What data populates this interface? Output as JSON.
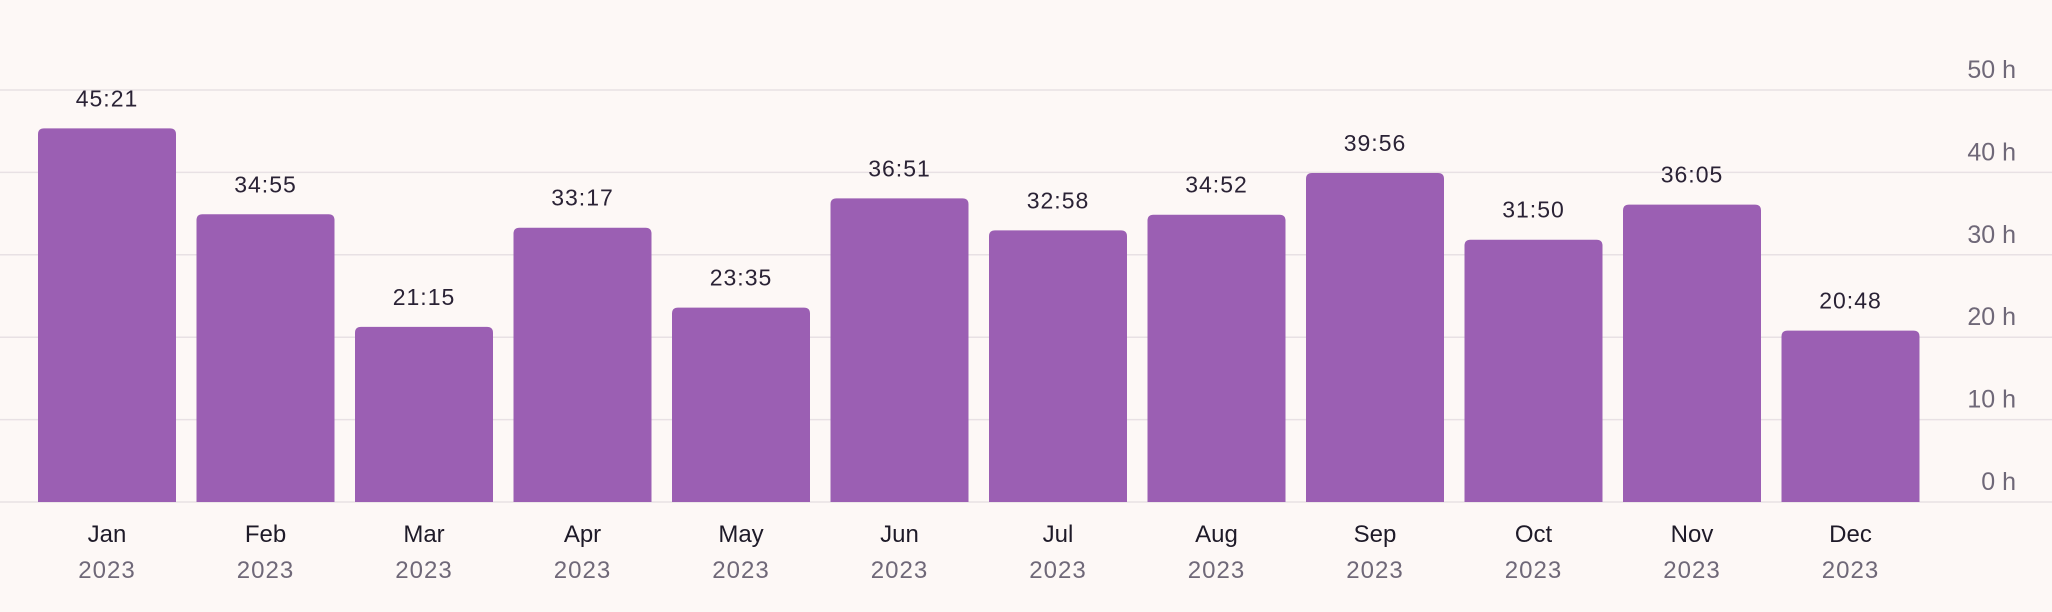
{
  "chart_data": {
    "type": "bar",
    "categories": [
      "Jan",
      "Feb",
      "Mar",
      "Apr",
      "May",
      "Jun",
      "Jul",
      "Aug",
      "Sep",
      "Oct",
      "Nov",
      "Dec"
    ],
    "category_sublabels": [
      "2023",
      "2023",
      "2023",
      "2023",
      "2023",
      "2023",
      "2023",
      "2023",
      "2023",
      "2023",
      "2023",
      "2023"
    ],
    "values": [
      45.35,
      34.9167,
      21.25,
      33.2833,
      23.5833,
      36.85,
      32.9667,
      34.8667,
      39.9333,
      31.8333,
      36.0833,
      20.8
    ],
    "data_labels": [
      "45:21",
      "34:55",
      "21:15",
      "33:17",
      "23:35",
      "36:51",
      "32:58",
      "34:52",
      "39:56",
      "31:50",
      "36:05",
      "20:48"
    ],
    "y_ticks": [
      0,
      10,
      20,
      30,
      40,
      50
    ],
    "y_tick_labels": [
      "0 h",
      "10 h",
      "20 h",
      "30 h",
      "40 h",
      "50 h"
    ],
    "ylim": [
      0,
      50
    ],
    "y_axis_side": "right",
    "grid": true,
    "title": "",
    "xlabel": "",
    "ylabel": "",
    "bar_color": "#9b5fb3",
    "background_color": "#fdf8f6"
  }
}
